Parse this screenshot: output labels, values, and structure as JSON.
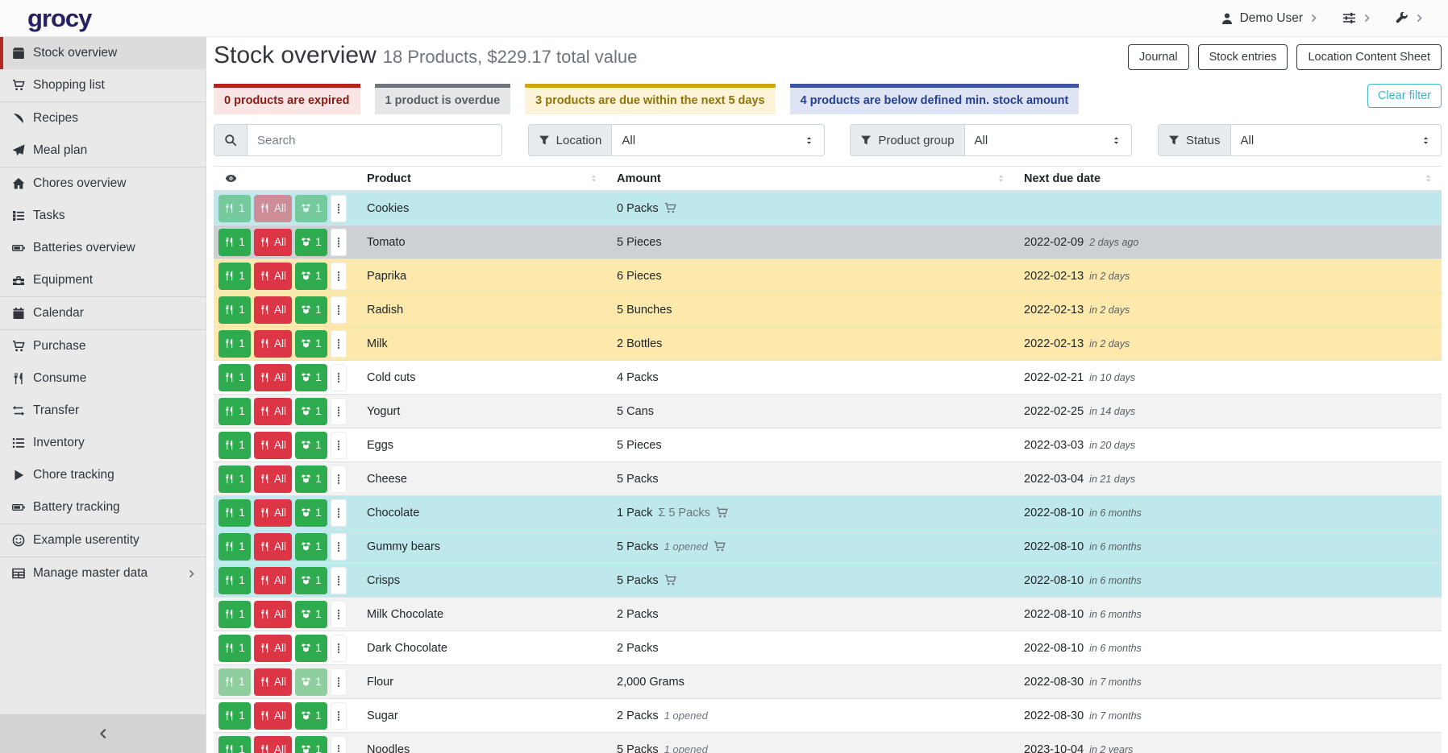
{
  "topbar": {
    "logo": "grocy",
    "user_label": "Demo User"
  },
  "sidebar": {
    "groups": [
      [
        {
          "label": "Stock overview",
          "icon": "box-icon",
          "active": true
        },
        {
          "label": "Shopping list",
          "icon": "cart-icon"
        }
      ],
      [
        {
          "label": "Recipes",
          "icon": "pizza-icon"
        },
        {
          "label": "Meal plan",
          "icon": "paper-plane-icon"
        }
      ],
      [
        {
          "label": "Chores overview",
          "icon": "home-icon"
        },
        {
          "label": "Tasks",
          "icon": "tasks-icon"
        },
        {
          "label": "Batteries overview",
          "icon": "battery-icon"
        },
        {
          "label": "Equipment",
          "icon": "toolbox-icon"
        }
      ],
      [
        {
          "label": "Calendar",
          "icon": "calendar-icon"
        }
      ],
      [
        {
          "label": "Purchase",
          "icon": "cart-icon"
        },
        {
          "label": "Consume",
          "icon": "utensils-icon"
        },
        {
          "label": "Transfer",
          "icon": "exchange-icon"
        },
        {
          "label": "Inventory",
          "icon": "list-icon"
        },
        {
          "label": "Chore tracking",
          "icon": "play-icon"
        },
        {
          "label": "Battery tracking",
          "icon": "battery-icon"
        }
      ],
      [
        {
          "label": "Example userentity",
          "icon": "smiley-icon"
        }
      ],
      [
        {
          "label": "Manage master data",
          "icon": "table-icon",
          "has_submenu": true
        }
      ]
    ]
  },
  "page": {
    "title": "Stock overview",
    "subtitle": "18 Products, $229.17 total value",
    "header_buttons": [
      "Journal",
      "Stock entries",
      "Location Content Sheet"
    ],
    "clear_filter_label": "Clear filter"
  },
  "status_cards": [
    {
      "text": "0 products are expired",
      "border": "#b3241c",
      "bg": "#f8e5e4",
      "color": "#8c1b15"
    },
    {
      "text": "1 product is overdue",
      "border": "#6f767d",
      "bg": "#e5e6e8",
      "color": "#565e64"
    },
    {
      "text": "3 products are due within the next 5 days",
      "border": "#d2a70a",
      "bg": "#fdf3d8",
      "color": "#8f7506"
    },
    {
      "text": "4 products are below defined min. stock amount",
      "border": "#3d55a5",
      "bg": "#dee4f4",
      "color": "#234095"
    }
  ],
  "filters": {
    "search_placeholder": "Search",
    "groups": [
      {
        "label": "Location",
        "value": "All"
      },
      {
        "label": "Product group",
        "value": "All"
      },
      {
        "label": "Status",
        "value": "All"
      }
    ]
  },
  "table": {
    "columns": [
      "Product",
      "Amount",
      "Next due date"
    ],
    "row_buttons": {
      "consume_one": "1",
      "consume_all": "All",
      "open_one": "1"
    },
    "rows": [
      {
        "product": "Cookies",
        "amount": "0 Packs",
        "cart": true,
        "date": "",
        "relative": "",
        "status": "below-min",
        "stripe": true,
        "disabled": [
          "consume_one",
          "consume_all",
          "open_one"
        ]
      },
      {
        "product": "Tomato",
        "amount": "5 Pieces",
        "date": "2022-02-09",
        "relative": "2 days ago",
        "status": "overdue"
      },
      {
        "product": "Paprika",
        "amount": "6 Pieces",
        "date": "2022-02-13",
        "relative": "in 2 days",
        "status": "due-soon",
        "stripe": true
      },
      {
        "product": "Radish",
        "amount": "5 Bunches",
        "date": "2022-02-13",
        "relative": "in 2 days",
        "status": "due-soon"
      },
      {
        "product": "Milk",
        "amount": "2 Bottles",
        "date": "2022-02-13",
        "relative": "in 2 days",
        "status": "due-soon",
        "stripe": true
      },
      {
        "product": "Cold cuts",
        "amount": "4 Packs",
        "date": "2022-02-21",
        "relative": "in 10 days"
      },
      {
        "product": "Yogurt",
        "amount": "5 Cans",
        "date": "2022-02-25",
        "relative": "in 14 days",
        "stripe": true
      },
      {
        "product": "Eggs",
        "amount": "5 Pieces",
        "date": "2022-03-03",
        "relative": "in 20 days"
      },
      {
        "product": "Cheese",
        "amount": "5 Packs",
        "date": "2022-03-04",
        "relative": "in 21 days",
        "stripe": true
      },
      {
        "product": "Chocolate",
        "amount": "1 Pack",
        "amount_total": "Σ 5 Packs",
        "cart": true,
        "date": "2022-08-10",
        "relative": "in 6 months",
        "status": "below-min"
      },
      {
        "product": "Gummy bears",
        "amount": "5 Packs",
        "opened": "1 opened",
        "cart": true,
        "date": "2022-08-10",
        "relative": "in 6 months",
        "status": "below-min",
        "stripe": true
      },
      {
        "product": "Crisps",
        "amount": "5 Packs",
        "cart": true,
        "date": "2022-08-10",
        "relative": "in 6 months",
        "status": "below-min"
      },
      {
        "product": "Milk Chocolate",
        "amount": "2 Packs",
        "date": "2022-08-10",
        "relative": "in 6 months",
        "stripe": true
      },
      {
        "product": "Dark Chocolate",
        "amount": "2 Packs",
        "date": "2022-08-10",
        "relative": "in 6 months"
      },
      {
        "product": "Flour",
        "amount": "2,000 Grams",
        "date": "2022-08-30",
        "relative": "in 7 months",
        "stripe": true,
        "disabled": [
          "consume_one",
          "open_one"
        ]
      },
      {
        "product": "Sugar",
        "amount": "2 Packs",
        "opened": "1 opened",
        "date": "2022-08-30",
        "relative": "in 7 months"
      },
      {
        "product": "Noodles",
        "amount": "5 Packs",
        "opened": "1 opened",
        "date": "2023-10-04",
        "relative": "in 2 years",
        "stripe": true
      }
    ]
  },
  "colors": {
    "row_below_min": "#bfe8ec",
    "row_overdue": "#cdd0d4",
    "row_due_soon": "#fde9ac",
    "row_stripe": "#f2f2f2",
    "btn_green": "#2fab4f",
    "btn_red": "#dc3545",
    "accent_teal": "#3eb6c4",
    "logo": "#262262",
    "active_red": "#ae2a23"
  }
}
